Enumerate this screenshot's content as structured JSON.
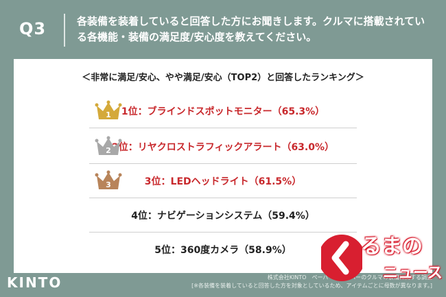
{
  "header": {
    "question_label": "Q3",
    "question_text": "各装備を装着していると回答した方にお聞きします。クルマに搭載されている各機能・装備の満足度/安心度を教えてください。"
  },
  "card": {
    "subtitle": "＜非常に満足/安心、やや満足/安心（TOP2）と回答したランキング＞",
    "ranking": [
      {
        "text": "1位：ブラインドスポットモニター（65.3%）",
        "crown_number": "1",
        "crown_color": "#d4a93a",
        "percent": 65.3
      },
      {
        "text": "2位：リヤクロストラフィックアラート（63.0%）",
        "crown_number": "2",
        "crown_color": "#a8a8a8",
        "percent": 63.0
      },
      {
        "text": "3位：LEDヘッドライト（61.5%）",
        "crown_number": "3",
        "crown_color": "#b8845a",
        "percent": 61.5
      },
      {
        "text": "4位：ナビゲーションシステム（59.4%）",
        "percent": 59.4
      },
      {
        "text": "5位：360度カメラ（58.9%）",
        "percent": 58.9
      }
    ]
  },
  "footer": {
    "source_line1": "株式会社KINTO　ペーパードライバーのクルマの装備に関する調査",
    "source_line2": "[※各装備を装着していると回答した方を対象としているため、アイテムごとに母数が異なります。]",
    "brand": "KINTO",
    "watermark_line1": "るまの",
    "watermark_line2": "ニュース"
  },
  "colors": {
    "background": "#7f9a94",
    "accent_red": "#c8282c",
    "watermark_red": "#d81f30"
  }
}
